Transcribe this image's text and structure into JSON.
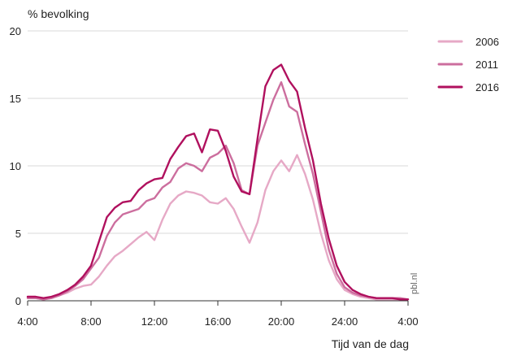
{
  "chart_data": {
    "type": "line",
    "ylabel": "% bevolking",
    "xlabel": "Tijd van de dag",
    "ylim": [
      0,
      20
    ],
    "yticks": [
      0,
      5,
      10,
      15,
      20
    ],
    "xlim": [
      4,
      28
    ],
    "xticks": [
      4,
      8,
      12,
      16,
      20,
      24,
      28
    ],
    "xtick_labels": [
      "4:00",
      "8:00",
      "12:00",
      "16:00",
      "20:00",
      "24:00",
      "4:00"
    ],
    "grid": "horizontal",
    "legend_position": "top-right",
    "credit": "pbl.nl",
    "x_hours": [
      4,
      4.5,
      5,
      5.5,
      6,
      6.5,
      7,
      7.5,
      8,
      8.5,
      9,
      9.5,
      10,
      10.5,
      11,
      11.5,
      12,
      12.5,
      13,
      13.5,
      14,
      14.5,
      15,
      15.5,
      16,
      16.5,
      17,
      17.5,
      18,
      18.5,
      19,
      19.5,
      20,
      20.5,
      21,
      21.5,
      22,
      22.5,
      23,
      23.5,
      24,
      24.5,
      25,
      25.5,
      26,
      26.5,
      27,
      27.5,
      28
    ],
    "series": [
      {
        "name": "2006",
        "color": "#e6a9c6",
        "values": [
          0.2,
          0.2,
          0.1,
          0.2,
          0.4,
          0.6,
          0.9,
          1.1,
          1.2,
          1.8,
          2.6,
          3.3,
          3.7,
          4.2,
          4.7,
          5.1,
          4.5,
          6.0,
          7.2,
          7.8,
          8.1,
          8.0,
          7.8,
          7.3,
          7.2,
          7.6,
          6.8,
          5.5,
          4.3,
          5.8,
          8.2,
          9.6,
          10.4,
          9.6,
          10.8,
          9.4,
          7.5,
          5.0,
          3.0,
          1.6,
          0.8,
          0.5,
          0.3,
          0.2,
          0.1,
          0.1,
          0.1,
          0.1,
          0.1
        ]
      },
      {
        "name": "2011",
        "color": "#cc6e9e",
        "values": [
          0.2,
          0.2,
          0.1,
          0.2,
          0.4,
          0.7,
          1.1,
          1.6,
          2.4,
          3.2,
          4.8,
          5.8,
          6.4,
          6.6,
          6.8,
          7.4,
          7.6,
          8.4,
          8.8,
          9.8,
          10.2,
          10.0,
          9.6,
          10.6,
          10.9,
          11.5,
          10.2,
          8.2,
          7.9,
          11.5,
          13.2,
          14.9,
          16.2,
          14.4,
          14.0,
          11.6,
          9.4,
          6.6,
          3.8,
          2.0,
          1.0,
          0.6,
          0.4,
          0.3,
          0.2,
          0.2,
          0.2,
          0.2,
          0.1
        ]
      },
      {
        "name": "2016",
        "color": "#b0105e",
        "values": [
          0.3,
          0.3,
          0.2,
          0.3,
          0.5,
          0.8,
          1.2,
          1.8,
          2.6,
          4.4,
          6.2,
          6.9,
          7.3,
          7.4,
          8.2,
          8.7,
          9.0,
          9.1,
          10.5,
          11.4,
          12.2,
          12.4,
          11.0,
          12.7,
          12.6,
          11.1,
          9.2,
          8.1,
          7.9,
          12.0,
          15.9,
          17.1,
          17.5,
          16.3,
          15.5,
          12.8,
          10.4,
          7.2,
          4.6,
          2.6,
          1.4,
          0.8,
          0.5,
          0.3,
          0.2,
          0.2,
          0.2,
          0.1,
          0.1
        ]
      }
    ]
  }
}
